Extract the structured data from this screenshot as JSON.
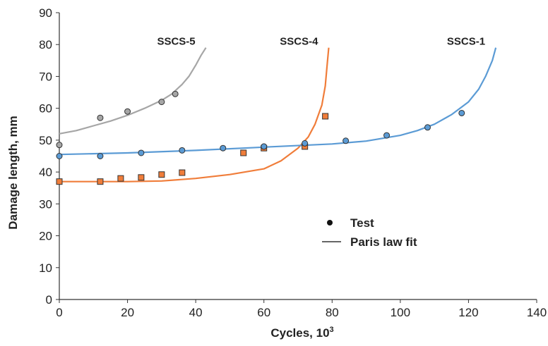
{
  "chart_data": {
    "type": "scatter",
    "xlabel": "Cycles, 10",
    "xlabel_sup": "3",
    "ylabel": "Damage length,  mm",
    "xlim": [
      0,
      140
    ],
    "ylim": [
      0,
      90
    ],
    "x_ticks": [
      "0",
      "20",
      "40",
      "60",
      "80",
      "100",
      "120",
      "140"
    ],
    "y_ticks": [
      "0",
      "10",
      "20",
      "30",
      "40",
      "50",
      "60",
      "70",
      "80",
      "90"
    ],
    "grid": false,
    "legend": {
      "placement": "center-right",
      "entries": [
        {
          "label": "Test",
          "marker": "dot"
        },
        {
          "label": "Paris law fit",
          "marker": "line"
        }
      ]
    },
    "series": [
      {
        "name": "SSCS-5",
        "color": "#a6a6a6",
        "marker": "circle",
        "test_x": [
          0,
          12,
          20,
          30,
          34
        ],
        "test_y": [
          48.5,
          57,
          59,
          62,
          64.5
        ],
        "fit_x": [
          0,
          5,
          10,
          15,
          20,
          25,
          30,
          33,
          36,
          38,
          40,
          41.5,
          43
        ],
        "fit_y": [
          52,
          53,
          54.5,
          56,
          57.8,
          60,
          62.5,
          64.5,
          67.5,
          70,
          73.5,
          76.5,
          79
        ]
      },
      {
        "name": "SSCS-4",
        "color": "#f07d3a",
        "marker": "square",
        "test_x": [
          0,
          12,
          18,
          24,
          30,
          36,
          54,
          60,
          72,
          78
        ],
        "test_y": [
          37,
          37,
          38,
          38.3,
          39.2,
          39.8,
          46,
          47.5,
          48,
          57.5
        ],
        "fit_x": [
          0,
          10,
          20,
          30,
          40,
          50,
          60,
          65,
          70,
          73,
          75,
          77,
          78,
          78.5,
          79
        ],
        "fit_y": [
          37,
          37,
          37,
          37.2,
          38,
          39.2,
          41,
          43.5,
          47.5,
          51,
          55,
          61,
          67,
          73,
          79
        ]
      },
      {
        "name": "SSCS-1",
        "color": "#5b9bd5",
        "marker": "circle",
        "test_x": [
          0,
          12,
          24,
          36,
          48,
          60,
          72,
          84,
          96,
          108,
          118
        ],
        "test_y": [
          45,
          45,
          46,
          46.8,
          47.5,
          48,
          49,
          49.8,
          51.5,
          54,
          58.5
        ],
        "fit_x": [
          0,
          20,
          40,
          60,
          80,
          90,
          100,
          105,
          110,
          115,
          120,
          123,
          125,
          127,
          128
        ],
        "fit_y": [
          45.5,
          46,
          46.8,
          47.8,
          48.8,
          49.7,
          51.5,
          53,
          55,
          58,
          62,
          66,
          70,
          75,
          79
        ]
      }
    ]
  }
}
